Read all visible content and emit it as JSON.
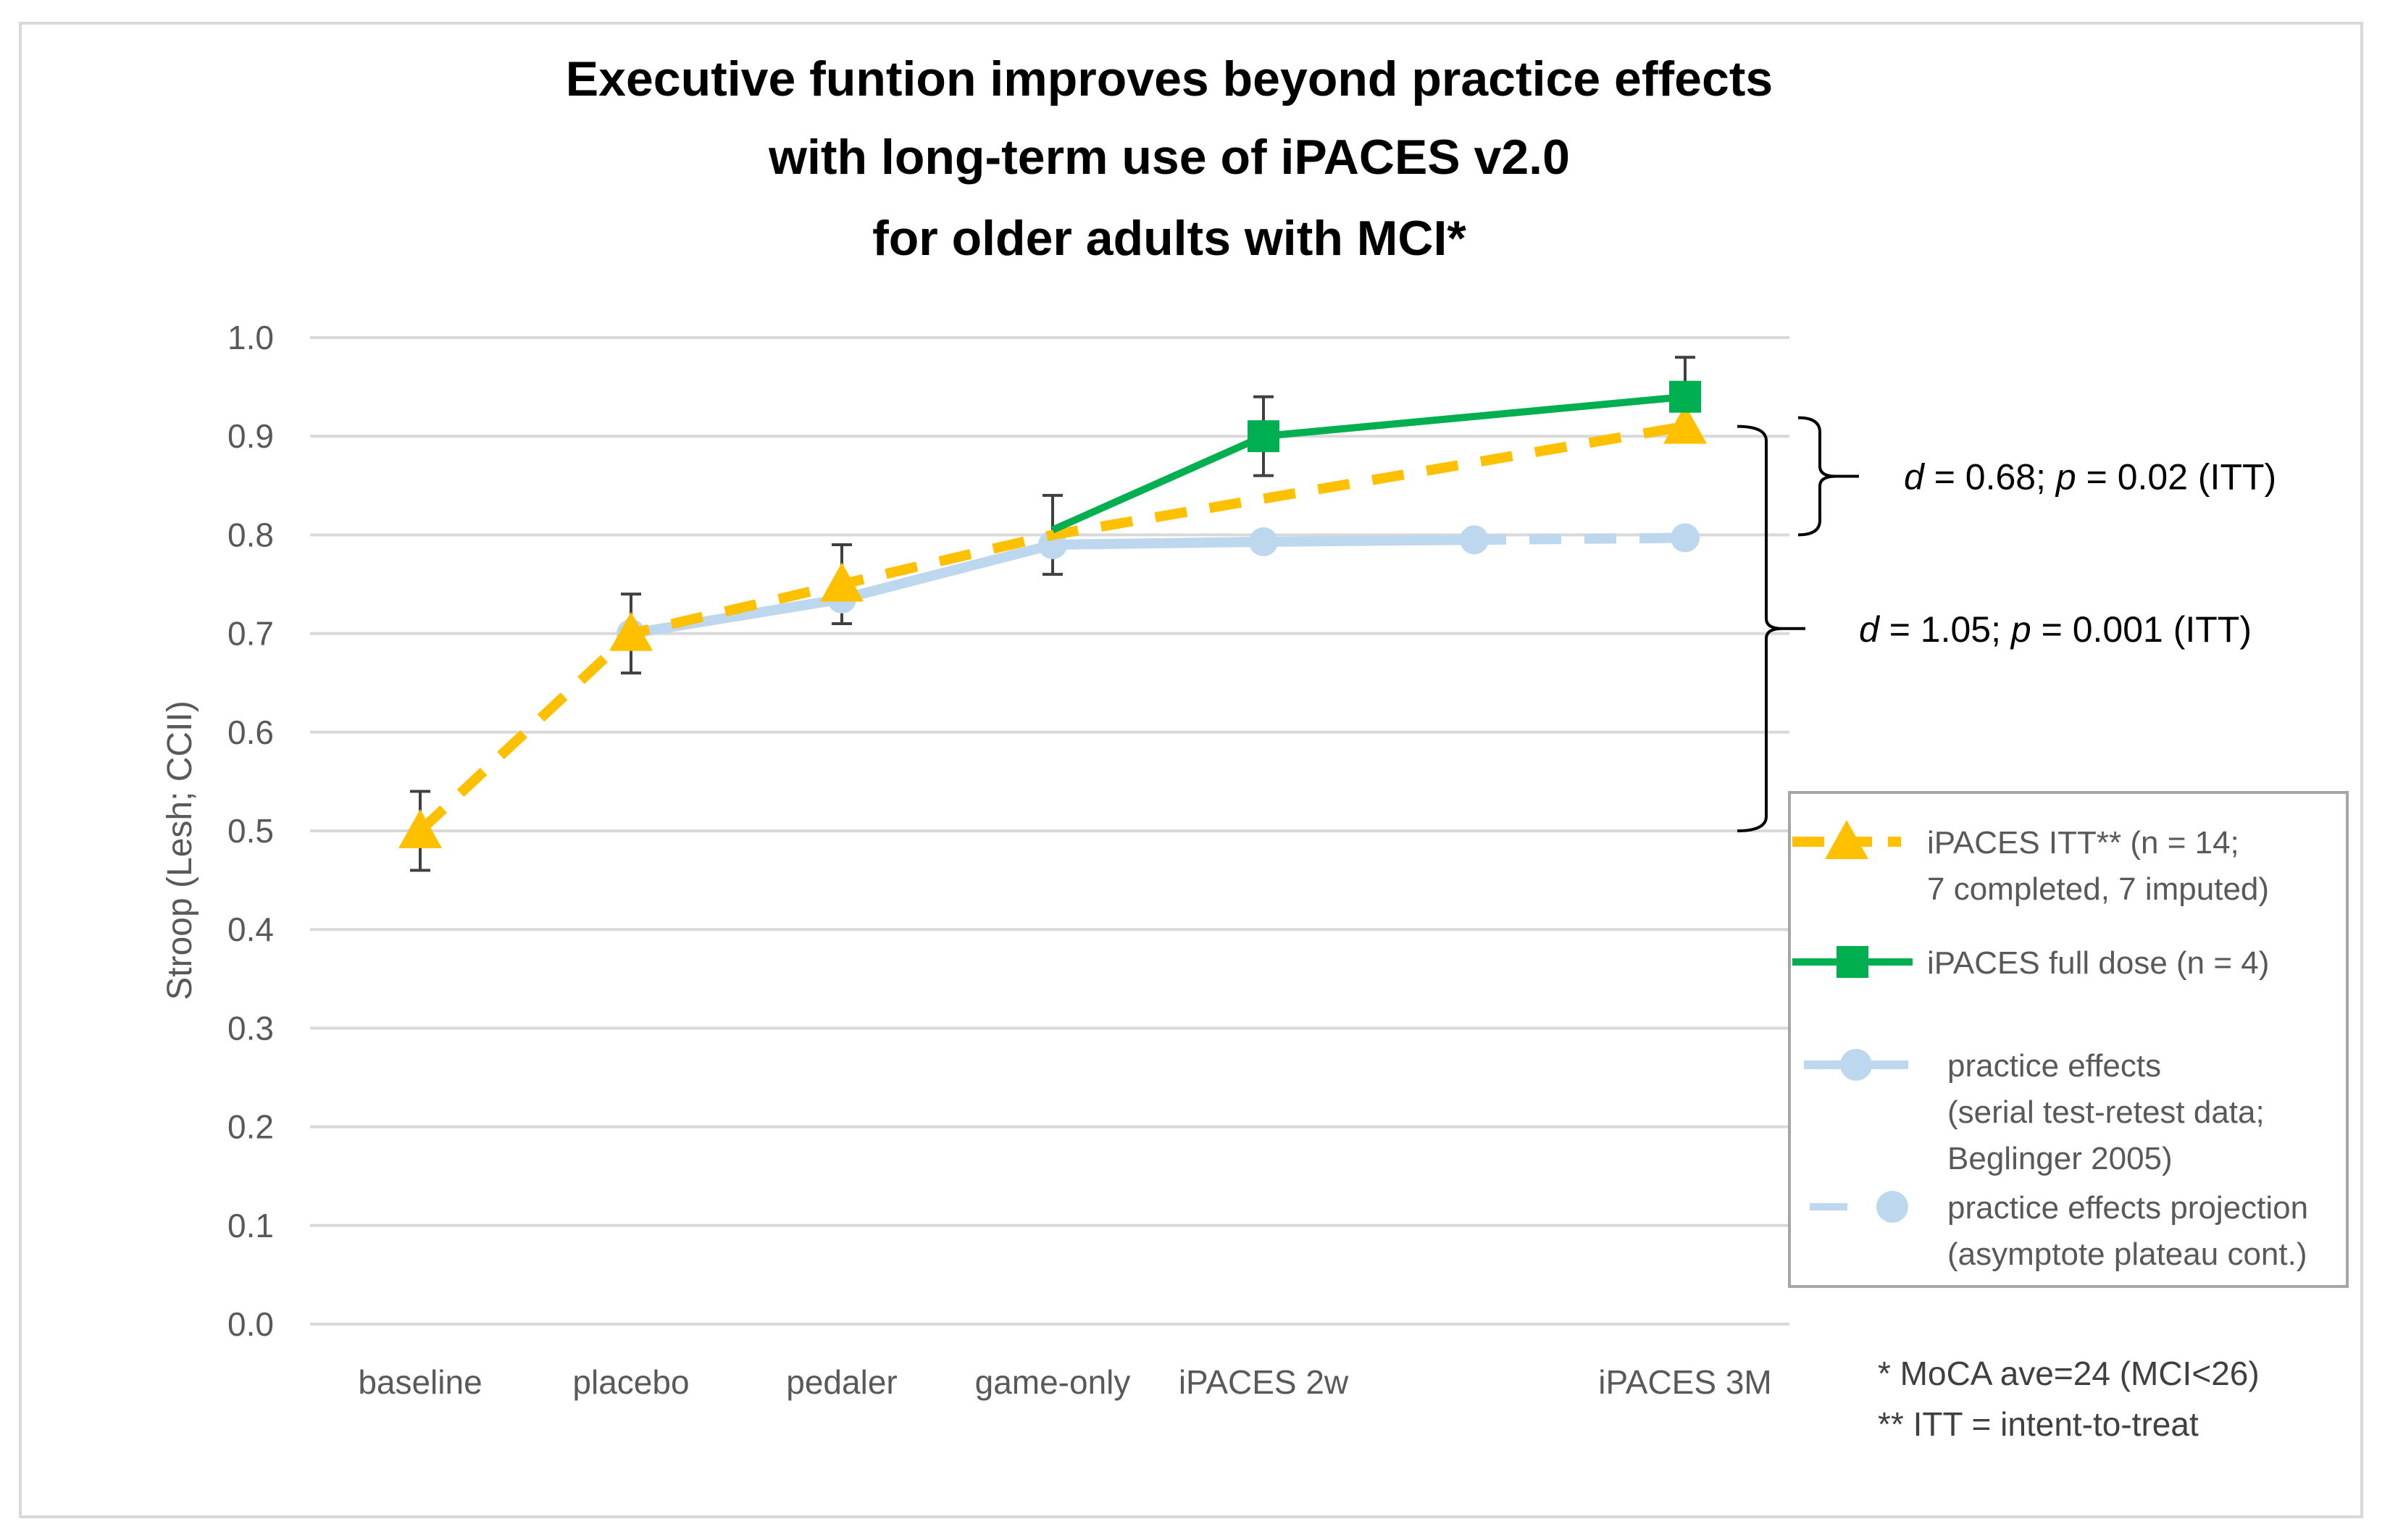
{
  "chart_data": {
    "type": "line",
    "title": [
      "Executive funtion improves beyond practice effects",
      "with long-term use of iPACES v2.0",
      "for older adults with MCI*"
    ],
    "ylabel": "Stroop (Lesh; CCII)",
    "xlabel": "",
    "ylim": [
      0,
      1.0
    ],
    "yticks": [
      0.0,
      0.1,
      0.2,
      0.3,
      0.4,
      0.5,
      0.6,
      0.7,
      0.8,
      0.9,
      1.0
    ],
    "ytick_labels": [
      "0.0",
      "0.1",
      "0.2",
      "0.3",
      "0.4",
      "0.5",
      "0.6",
      "0.7",
      "0.8",
      "0.9",
      "1.0"
    ],
    "categories": [
      "baseline",
      "placebo",
      "pedaler",
      "game-only",
      "iPACES 2w",
      "",
      "iPACES 3M"
    ],
    "grid": true,
    "series": [
      {
        "name": "iPACES ITT** (n = 14; 7 completed, 7 imputed)",
        "color": "#FFC000",
        "style": "dashed",
        "marker": "triangle",
        "points": [
          {
            "x": 0,
            "y": 0.5,
            "marker": true
          },
          {
            "x": 1,
            "y": 0.7,
            "marker": true
          },
          {
            "x": 2,
            "y": 0.75,
            "marker": true
          },
          {
            "x": 3,
            "y": 0.8,
            "marker": false
          },
          {
            "x": 6,
            "y": 0.91,
            "marker": true
          }
        ]
      },
      {
        "name": "iPACES full dose (n = 4)",
        "color": "#00B050",
        "style": "solid",
        "marker": "square",
        "points": [
          {
            "x": 3,
            "y": 0.805,
            "marker": false
          },
          {
            "x": 4,
            "y": 0.9,
            "marker": true
          },
          {
            "x": 6,
            "y": 0.94,
            "marker": true
          }
        ]
      },
      {
        "name": "practice effects (serial test-retest data; Beglinger 2005)",
        "color": "#BDD7EE",
        "style": "solid",
        "marker": "circle",
        "points": [
          {
            "x": 1,
            "y": 0.7,
            "marker": true
          },
          {
            "x": 2,
            "y": 0.735,
            "marker": true
          },
          {
            "x": 3,
            "y": 0.79,
            "marker": true
          },
          {
            "x": 4,
            "y": 0.793,
            "marker": true
          },
          {
            "x": 5,
            "y": 0.795,
            "marker": true
          }
        ]
      },
      {
        "name": "practice effects projection (asymptote plateau cont.)",
        "color": "#BDD7EE",
        "style": "dashed",
        "marker": "circle",
        "points": [
          {
            "x": 5,
            "y": 0.795,
            "marker": false
          },
          {
            "x": 6,
            "y": 0.797,
            "marker": true
          }
        ]
      }
    ],
    "error_bars": [
      {
        "x": 0,
        "low": 0.46,
        "high": 0.54
      },
      {
        "x": 1,
        "low": 0.66,
        "high": 0.74
      },
      {
        "x": 2,
        "low": 0.71,
        "high": 0.79
      },
      {
        "x": 3,
        "low": 0.76,
        "high": 0.84
      },
      {
        "x": 4,
        "low": 0.86,
        "high": 0.94
      },
      {
        "x": 6,
        "low": 0.9,
        "high": 0.98
      }
    ],
    "annotations": {
      "small_bracket": {
        "from": 0.8,
        "to": 0.91,
        "text_prefix": "d",
        "text_mid": " = 0.68; ",
        "text_p": "p",
        "text_suffix": " = 0.02 (ITT)"
      },
      "large_bracket": {
        "from": 0.5,
        "to": 0.91,
        "text_prefix": "d",
        "text_mid": " = 1.05; ",
        "text_p": "p",
        "text_suffix": " = 0.001 (ITT)"
      }
    },
    "legend": {
      "position": "right",
      "entries": [
        {
          "lines": [
            "iPACES ITT** (n = 14;",
            "7 completed, 7 imputed)"
          ]
        },
        {
          "lines": [
            "iPACES full dose (n = 4)"
          ]
        },
        {
          "lines": [
            "practice effects",
            "(serial test-retest data;",
            "Beglinger 2005)"
          ]
        },
        {
          "lines": [
            "practice effects projection",
            "(asymptote plateau cont.)"
          ]
        }
      ]
    },
    "footnotes": [
      "* MoCA ave=24 (MCI<26)",
      "** ITT = intent-to-treat"
    ]
  }
}
